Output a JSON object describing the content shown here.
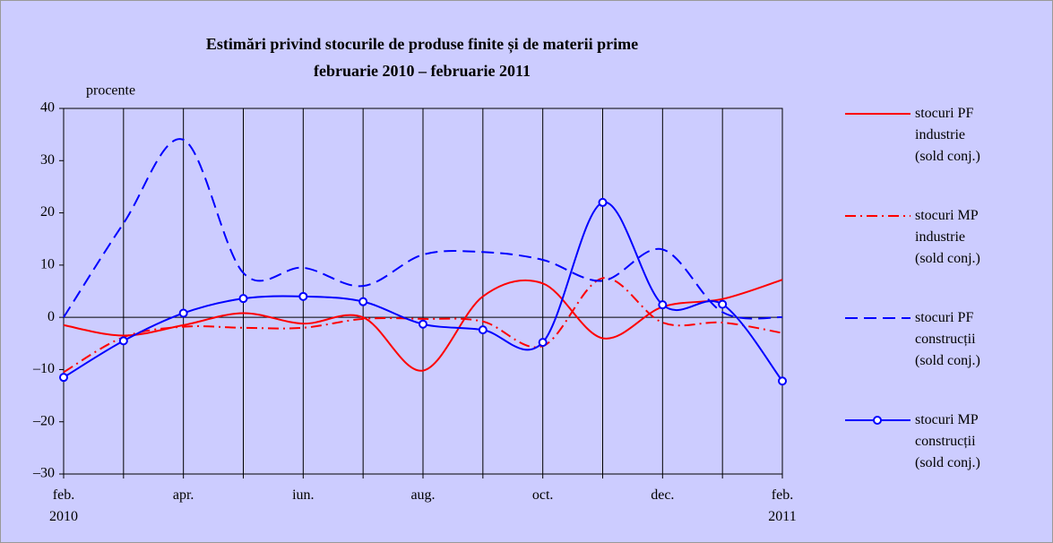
{
  "chart_data": {
    "type": "line",
    "title": "Estimări privind stocurile de produse finite și de materii prime",
    "subtitle": "februarie 2010 – februarie 2011",
    "y_label": "procente",
    "categories": [
      "feb.\n2010",
      null,
      "apr.",
      null,
      "iun.",
      null,
      "aug.",
      null,
      "oct.",
      null,
      "dec.",
      null,
      "feb.\n2011"
    ],
    "ylim": [
      -30,
      40
    ],
    "yticks": [
      {
        "value": -30,
        "label": "–30"
      },
      {
        "value": -20,
        "label": "–20"
      },
      {
        "value": -10,
        "label": "–10"
      },
      0,
      10,
      20,
      30,
      40
    ],
    "vertical_grid": true,
    "legend": "right",
    "series": [
      {
        "name": "stocuri PF\nindustrie\n(sold conj.)",
        "color": "#ff0000",
        "dash": "solid",
        "values": [
          -1.5,
          -3.5,
          -1.5,
          0.8,
          -1.2,
          0,
          -10.2,
          4,
          6.5,
          -4,
          2,
          3.5,
          7.2
        ]
      },
      {
        "name": "stocuri MP\nindustrie\n(sold conj.)",
        "color": "#ff0000",
        "dash": "dashdot",
        "values": [
          -10.5,
          -3.8,
          -1.8,
          -2,
          -2,
          -0.3,
          -0.3,
          -0.8,
          -5.5,
          7.5,
          -1,
          -1,
          -3
        ]
      },
      {
        "name": "stocuri PF\nconstrucții\n(sold conj.)",
        "color": "#0000ff",
        "dash": "dashed",
        "values": [
          0,
          18,
          34,
          8.5,
          9.5,
          6,
          12,
          12.5,
          11,
          7,
          13,
          1,
          0
        ]
      },
      {
        "name": "stocuri MP\nconstrucții\n(sold conj.)",
        "color": "#0000ff",
        "dash": "solid",
        "marker": "circle",
        "values": [
          -11.5,
          -4.5,
          0.8,
          3.6,
          4,
          3,
          -1.3,
          -2.4,
          -4.8,
          22,
          2.4,
          2.5,
          -12.2
        ]
      }
    ]
  }
}
